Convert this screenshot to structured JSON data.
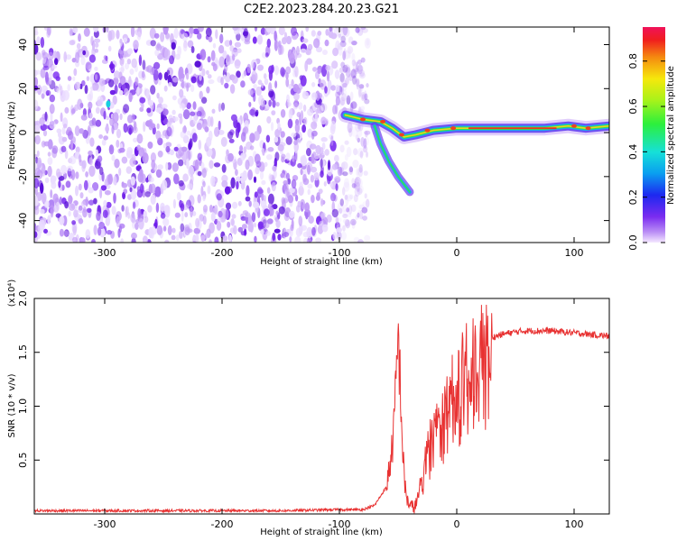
{
  "title": "C2E2.2023.284.20.23.G21",
  "colors": {
    "snr_line": "#e83232",
    "axis": "#000000"
  },
  "chart_data": [
    {
      "type": "heatmap",
      "xlabel": "Height of straight line (km)",
      "ylabel": "Frequency (Hz)",
      "xlim": [
        -360,
        130
      ],
      "ylim": [
        -50,
        48
      ],
      "xticks": [
        -300,
        -200,
        -100,
        0,
        100
      ],
      "yticks": [
        -40,
        -20,
        0,
        20,
        40
      ],
      "colorbar": {
        "label": "Normalized spectral amplitude",
        "range": [
          0.0,
          0.95
        ],
        "ticks": [
          0.0,
          0.2,
          0.4,
          0.6,
          0.8
        ],
        "colormap": "rainbow"
      },
      "features": {
        "noise_region_x": [
          -360,
          -85
        ],
        "signal_track": [
          {
            "x": -95,
            "y": 8
          },
          {
            "x": -80,
            "y": 6
          },
          {
            "x": -65,
            "y": 5
          },
          {
            "x": -55,
            "y": 2
          },
          {
            "x": -45,
            "y": -2
          },
          {
            "x": -35,
            "y": -1
          },
          {
            "x": -20,
            "y": 1
          },
          {
            "x": 0,
            "y": 2
          },
          {
            "x": 25,
            "y": 2
          },
          {
            "x": 50,
            "y": 2
          },
          {
            "x": 75,
            "y": 2
          },
          {
            "x": 95,
            "y": 3
          },
          {
            "x": 110,
            "y": 2
          },
          {
            "x": 130,
            "y": 3
          }
        ],
        "branch_track": [
          {
            "x": -70,
            "y": 3
          },
          {
            "x": -65,
            "y": -5
          },
          {
            "x": -58,
            "y": -13
          },
          {
            "x": -50,
            "y": -20
          },
          {
            "x": -40,
            "y": -27
          }
        ]
      }
    },
    {
      "type": "line",
      "xlabel": "Height of straight line (km)",
      "ylabel": "SNR (10 * v/v)",
      "y_multiplier": "(x10⁴)",
      "xlim": [
        -360,
        130
      ],
      "ylim": [
        0,
        2.0
      ],
      "xticks": [
        -300,
        -200,
        -100,
        0,
        100
      ],
      "yticks": [
        0.5,
        1.0,
        1.5,
        2.0
      ],
      "ytick_labels": [
        "0.5",
        "1.0",
        "1.5",
        "2.0"
      ],
      "series": [
        {
          "x": [
            -360,
            -300,
            -250,
            -200,
            -150,
            -100,
            -80,
            -70,
            -60,
            -55,
            -52,
            -50,
            -48,
            -46,
            -44,
            -42,
            -40,
            -37,
            -34,
            -30,
            -27,
            -25,
            -22,
            -20,
            -15,
            -10,
            -5,
            0,
            5,
            10,
            15,
            20,
            25,
            30,
            40,
            50,
            60,
            70,
            80,
            90,
            100,
            110,
            120,
            130
          ],
          "y": [
            0.03,
            0.03,
            0.03,
            0.03,
            0.03,
            0.04,
            0.04,
            0.08,
            0.25,
            0.6,
            1.1,
            1.65,
            1.2,
            0.55,
            0.25,
            0.12,
            0.08,
            0.06,
            0.1,
            0.3,
            0.5,
            0.6,
            0.75,
            0.8,
            0.95,
            1.05,
            1.15,
            1.25,
            1.35,
            1.45,
            1.5,
            1.55,
            1.6,
            1.64,
            1.67,
            1.69,
            1.7,
            1.7,
            1.7,
            1.69,
            1.68,
            1.67,
            1.66,
            1.65
          ]
        }
      ]
    }
  ]
}
